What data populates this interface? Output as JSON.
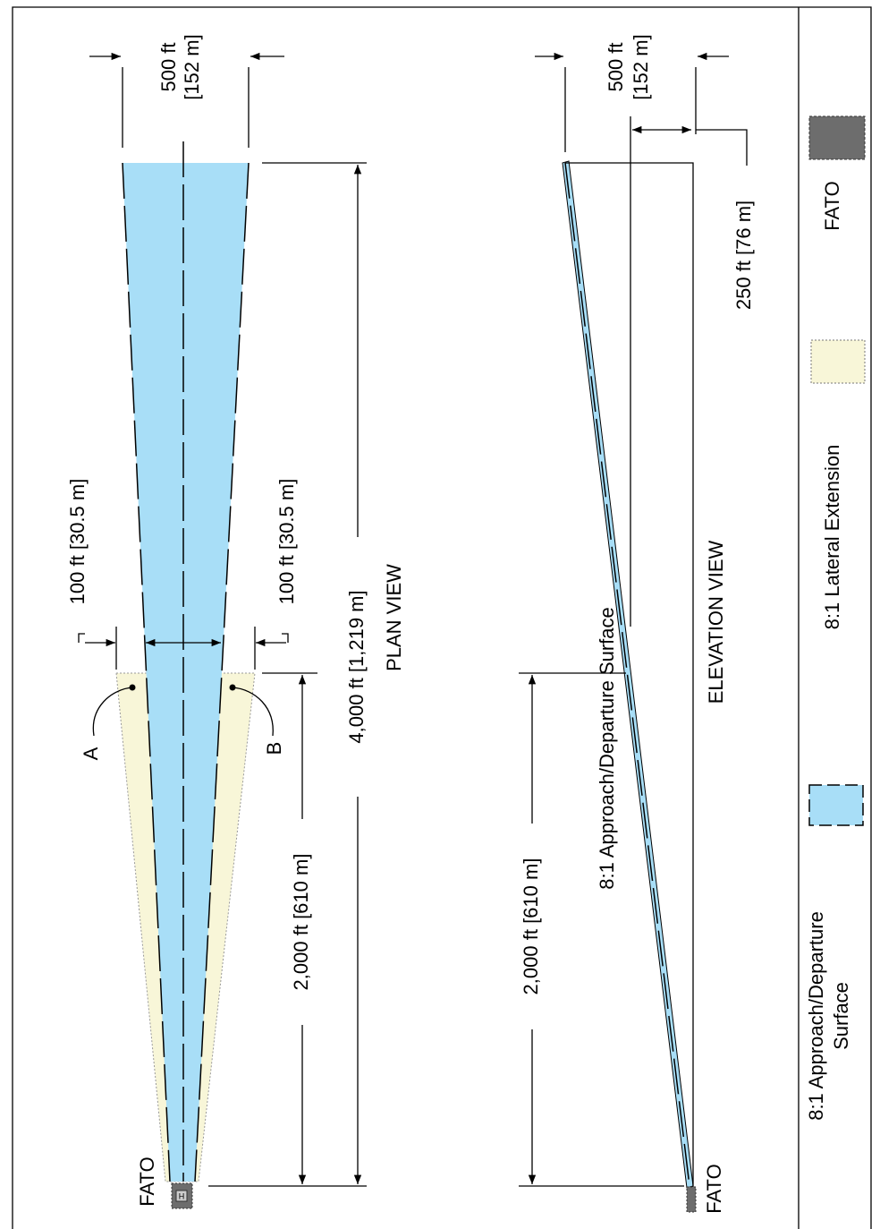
{
  "plan_view": {
    "title": "PLAN VIEW",
    "top_width": [
      "500 ft",
      "[152 m]"
    ],
    "left_extension": "100 ft [30.5 m]",
    "right_extension": "100 ft [30.5 m]",
    "total_length": "4,000 ft [1,219 m]",
    "extension_length": "2,000 ft [610 m]",
    "point_a": "A",
    "point_b": "B",
    "fato": "FATO"
  },
  "elevation_view": {
    "title": "ELEVATION VIEW",
    "top_width": [
      "500 ft",
      "[152 m]"
    ],
    "height": "250 ft [76 m]",
    "surface": "8:1 Approach/Departure Surface",
    "extension_length": "2,000 ft [610 m]",
    "fato": "FATO"
  },
  "legend": {
    "items": [
      [
        "8:1 Approach/Departure",
        "Surface"
      ],
      [
        "8:1 Lateral Extension"
      ],
      [
        "FATO"
      ]
    ]
  }
}
